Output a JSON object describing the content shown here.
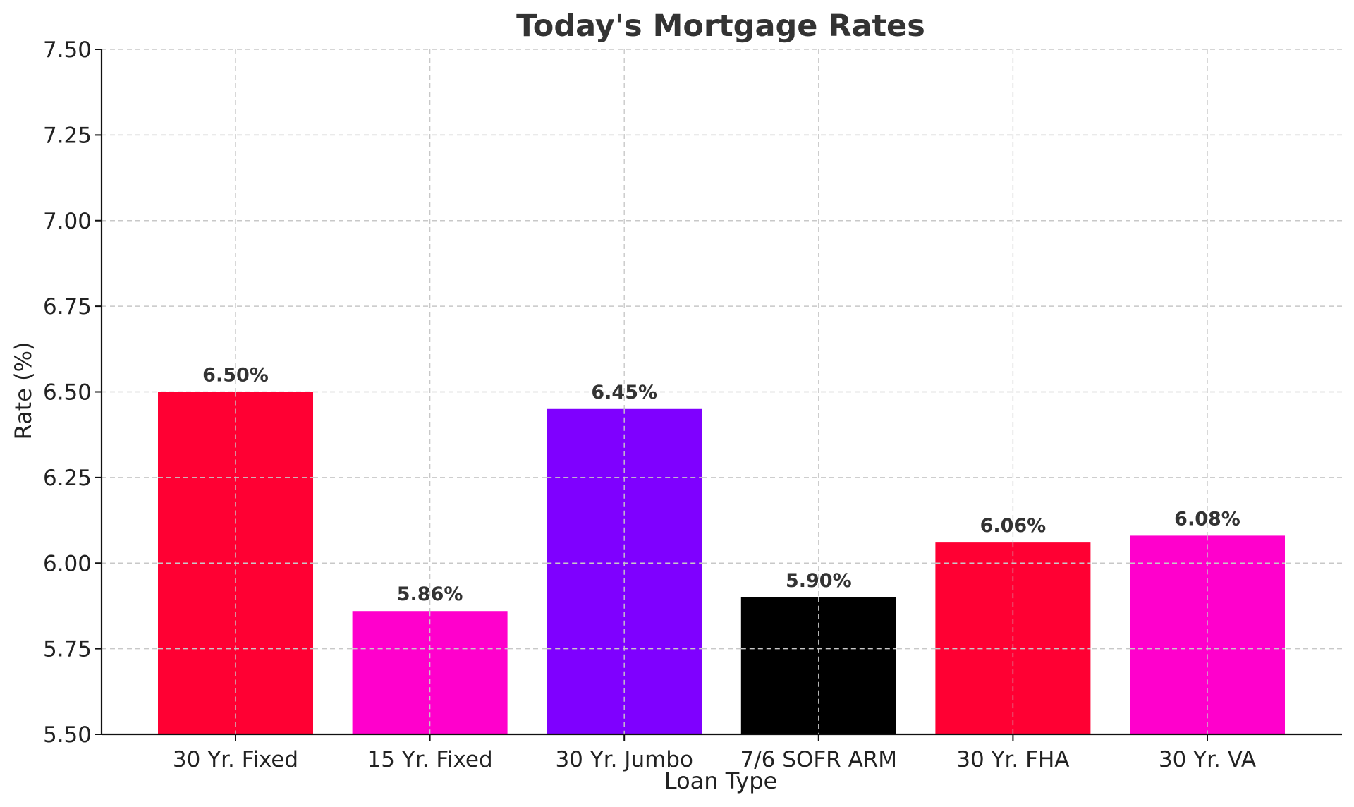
{
  "chart_data": {
    "type": "bar",
    "title": "Today's Mortgage Rates",
    "xlabel": "Loan Type",
    "ylabel": "Rate (%)",
    "ylim": [
      5.5,
      7.5
    ],
    "yticks": [
      "5.50",
      "5.75",
      "6.00",
      "6.25",
      "6.50",
      "6.75",
      "7.00",
      "7.25",
      "7.50"
    ],
    "categories": [
      "30 Yr. Fixed",
      "15 Yr. Fixed",
      "30 Yr. Jumbo",
      "7/6 SOFR ARM",
      "30 Yr. FHA",
      "30 Yr. VA"
    ],
    "values": [
      6.5,
      5.86,
      6.45,
      5.9,
      6.06,
      6.08
    ],
    "value_labels": [
      "6.50%",
      "5.86%",
      "6.45%",
      "5.90%",
      "6.06%",
      "6.08%"
    ],
    "colors": [
      "#ff0033",
      "#ff00cc",
      "#7f00ff",
      "#000000",
      "#ff0033",
      "#ff00cc"
    ],
    "grid": true
  }
}
